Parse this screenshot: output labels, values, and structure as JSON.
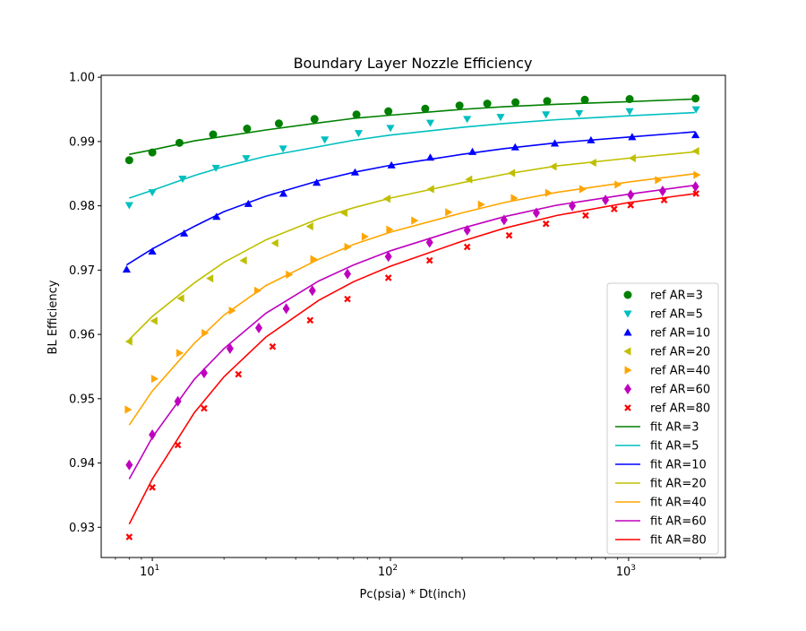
{
  "chart_data": {
    "type": "scatter",
    "title": "Boundary Layer Nozzle Efficiency",
    "xlabel": "Pc(psia) * Dt(inch)",
    "ylabel": "BL Efficiency",
    "xscale": "log",
    "xlim": [
      6.1,
      2550
    ],
    "ylim": [
      0.9253,
      1.0003
    ],
    "grid": false,
    "legend_position": "lower right",
    "x_ticks": [
      {
        "value": 10,
        "label": "10",
        "exp": "1"
      },
      {
        "value": 100,
        "label": "10",
        "exp": "2"
      },
      {
        "value": 1000,
        "label": "10",
        "exp": "3"
      }
    ],
    "y_ticks": [
      {
        "value": 0.93,
        "label": "0.93"
      },
      {
        "value": 0.94,
        "label": "0.94"
      },
      {
        "value": 0.95,
        "label": "0.95"
      },
      {
        "value": 0.96,
        "label": "0.96"
      },
      {
        "value": 0.97,
        "label": "0.97"
      },
      {
        "value": 0.98,
        "label": "0.98"
      },
      {
        "value": 0.99,
        "label": "0.99"
      },
      {
        "value": 1.0,
        "label": "1.00"
      }
    ],
    "ref_series": [
      {
        "name": "ref AR=3",
        "color": "#008000",
        "marker": "circle",
        "x": [
          8,
          10,
          13,
          18,
          25,
          34,
          48,
          72,
          98,
          140,
          195,
          255,
          335,
          455,
          655,
          1010,
          1910
        ],
        "y": [
          0.9871,
          0.9883,
          0.9898,
          0.9911,
          0.992,
          0.9928,
          0.9935,
          0.9942,
          0.9947,
          0.9951,
          0.9956,
          0.9959,
          0.9961,
          0.9963,
          0.9965,
          0.9966,
          0.9967
        ]
      },
      {
        "name": "ref AR=5",
        "color": "#00bfbf",
        "marker": "triangle-down",
        "x": [
          8,
          10,
          13.4,
          18.5,
          24.8,
          35.4,
          53,
          73.5,
          100,
          147,
          210,
          290,
          450,
          620,
          1010,
          1920
        ],
        "y": [
          0.9801,
          0.9821,
          0.9842,
          0.9859,
          0.9874,
          0.9889,
          0.9903,
          0.9913,
          0.9921,
          0.9929,
          0.9935,
          0.9938,
          0.9942,
          0.9944,
          0.9947,
          0.995
        ]
      },
      {
        "name": "ref AR=10",
        "color": "#0000ff",
        "marker": "triangle-up",
        "x": [
          7.8,
          10,
          13.6,
          18.6,
          25.3,
          35.5,
          49,
          71,
          101,
          147,
          221,
          334,
          490,
          695,
          1035,
          1910
        ],
        "y": [
          0.9701,
          0.9729,
          0.9757,
          0.9783,
          0.9803,
          0.9819,
          0.9836,
          0.9852,
          0.9863,
          0.9875,
          0.9884,
          0.9891,
          0.9897,
          0.9902,
          0.9907,
          0.991
        ]
      },
      {
        "name": "ref AR=20",
        "color": "#bfbf00",
        "marker": "triangle-left",
        "x": [
          8,
          10.2,
          13.2,
          17.5,
          24.2,
          32.8,
          46,
          64,
          97,
          148,
          214,
          324,
          484,
          710,
          1040,
          1920
        ],
        "y": [
          0.9589,
          0.9621,
          0.9656,
          0.9687,
          0.9715,
          0.9742,
          0.9768,
          0.9789,
          0.9811,
          0.9826,
          0.9841,
          0.9851,
          0.9861,
          0.9867,
          0.9874,
          0.9885
        ]
      },
      {
        "name": "ref AR=40",
        "color": "#ffa500",
        "marker": "triangle-right",
        "x": [
          7.9,
          10.2,
          13,
          16.6,
          21.6,
          27.6,
          37.5,
          47.5,
          66,
          78,
          99,
          126,
          175,
          240,
          330,
          460,
          640,
          900,
          1330,
          1930
        ],
        "y": [
          0.9483,
          0.9531,
          0.9571,
          0.9602,
          0.9637,
          0.9668,
          0.9693,
          0.9717,
          0.9736,
          0.9752,
          0.9763,
          0.9777,
          0.979,
          0.9802,
          0.9812,
          0.982,
          0.9826,
          0.9833,
          0.984,
          0.9848
        ]
      },
      {
        "name": "ref AR=60",
        "color": "#bf00bf",
        "marker": "diamond",
        "x": [
          8,
          10,
          12.8,
          16.5,
          21.2,
          28,
          36.5,
          47,
          66,
          98,
          146,
          210,
          300,
          410,
          580,
          800,
          1020,
          1390,
          1910
        ],
        "y": [
          0.9397,
          0.9444,
          0.9496,
          0.954,
          0.9578,
          0.961,
          0.964,
          0.9668,
          0.9694,
          0.9721,
          0.9743,
          0.9762,
          0.9778,
          0.9789,
          0.98,
          0.9809,
          0.9817,
          0.9823,
          0.983
        ]
      },
      {
        "name": "ref AR=80",
        "color": "#ff0000",
        "marker": "x",
        "x": [
          8,
          10,
          12.8,
          16.5,
          23,
          32,
          46,
          66,
          98,
          146,
          210,
          315,
          450,
          660,
          870,
          1020,
          1410,
          1920
        ],
        "y": [
          0.9285,
          0.9362,
          0.9428,
          0.9485,
          0.9538,
          0.9581,
          0.9622,
          0.9655,
          0.9688,
          0.9715,
          0.9736,
          0.9754,
          0.9772,
          0.9785,
          0.9795,
          0.9801,
          0.9809,
          0.9819
        ]
      }
    ],
    "fit_series": [
      {
        "name": "fit AR=3",
        "color": "#008000",
        "x": [
          8,
          10,
          15,
          20,
          30,
          50,
          70,
          100,
          200,
          300,
          500,
          1000,
          1900
        ],
        "y": [
          0.988,
          0.9887,
          0.9901,
          0.9908,
          0.9918,
          0.9929,
          0.9936,
          0.9941,
          0.995,
          0.9954,
          0.9958,
          0.9962,
          0.9966
        ]
      },
      {
        "name": "fit AR=5",
        "color": "#00bfbf",
        "x": [
          8,
          10,
          15,
          20,
          30,
          50,
          70,
          100,
          200,
          300,
          500,
          1000,
          1900
        ],
        "y": [
          0.9812,
          0.9824,
          0.9847,
          0.9861,
          0.9877,
          0.9892,
          0.9902,
          0.991,
          0.9922,
          0.9928,
          0.9934,
          0.994,
          0.9945
        ]
      },
      {
        "name": "fit AR=10",
        "color": "#0000ff",
        "x": [
          7.8,
          10,
          15,
          20,
          30,
          50,
          70,
          100,
          200,
          300,
          500,
          1000,
          1900
        ],
        "y": [
          0.9708,
          0.9733,
          0.9768,
          0.9791,
          0.9815,
          0.9839,
          0.9852,
          0.9863,
          0.988,
          0.9889,
          0.9898,
          0.9907,
          0.9915
        ]
      },
      {
        "name": "fit AR=20",
        "color": "#bfbf00",
        "x": [
          8,
          10,
          15,
          20,
          30,
          50,
          70,
          100,
          200,
          300,
          500,
          1000,
          1900
        ],
        "y": [
          0.9592,
          0.9628,
          0.968,
          0.9712,
          0.9747,
          0.978,
          0.9797,
          0.9812,
          0.9836,
          0.9849,
          0.9862,
          0.9874,
          0.9884
        ]
      },
      {
        "name": "fit AR=40",
        "color": "#ffa500",
        "x": [
          8,
          10,
          15,
          20,
          30,
          50,
          70,
          100,
          200,
          300,
          500,
          1000,
          1900
        ],
        "y": [
          0.9459,
          0.9512,
          0.9586,
          0.963,
          0.9676,
          0.9717,
          0.974,
          0.9759,
          0.9789,
          0.9805,
          0.9821,
          0.9837,
          0.985
        ]
      },
      {
        "name": "fit AR=60",
        "color": "#bf00bf",
        "x": [
          8,
          10,
          15,
          20,
          30,
          50,
          70,
          100,
          200,
          300,
          500,
          1000,
          1900
        ],
        "y": [
          0.9375,
          0.944,
          0.953,
          0.9578,
          0.9633,
          0.9683,
          0.9708,
          0.973,
          0.9765,
          0.9783,
          0.9801,
          0.9818,
          0.9832
        ]
      },
      {
        "name": "fit AR=80",
        "color": "#ff0000",
        "x": [
          8,
          10,
          15,
          20,
          30,
          50,
          70,
          100,
          200,
          300,
          500,
          1000,
          1900
        ],
        "y": [
          0.9305,
          0.9375,
          0.9478,
          0.9534,
          0.9596,
          0.9653,
          0.9682,
          0.9706,
          0.9745,
          0.9765,
          0.9785,
          0.9805,
          0.9819
        ]
      }
    ]
  }
}
